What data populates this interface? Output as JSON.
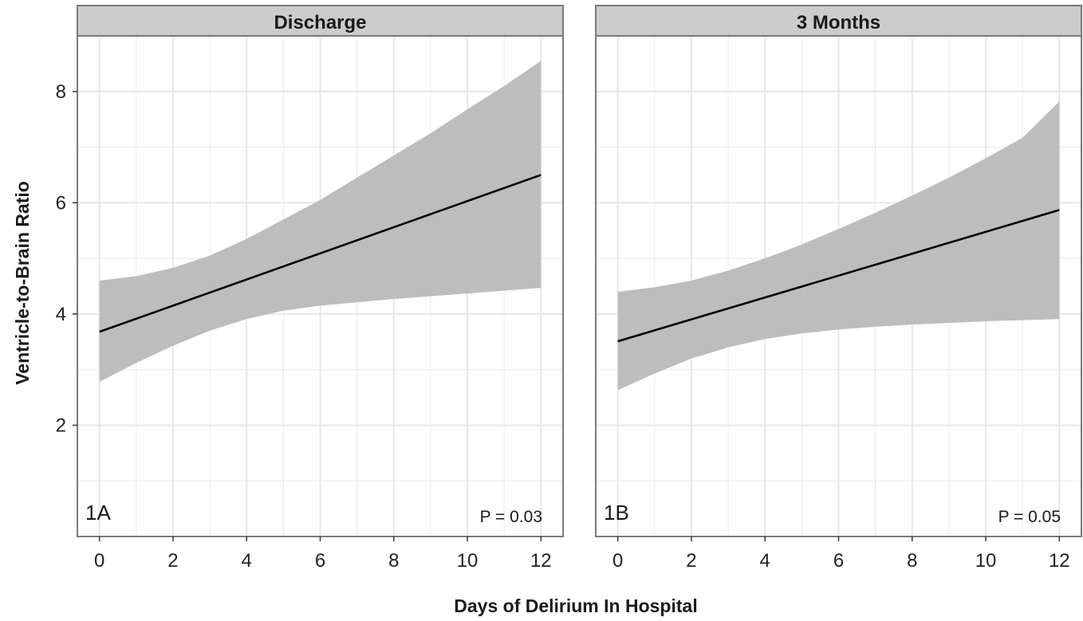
{
  "chart_data": {
    "type": "line",
    "xlabel": "Days of Delirium In Hospital",
    "ylabel": "Ventricle-to-Brain Ratio",
    "xlim": [
      -0.6,
      12.6
    ],
    "ylim": [
      0,
      9
    ],
    "x_ticks": [
      0,
      2,
      4,
      6,
      8,
      10,
      12
    ],
    "y_ticks": [
      2,
      4,
      6,
      8
    ],
    "grid": true,
    "panels": [
      {
        "title": "Discharge",
        "tag": "1A",
        "p_value": "P = 0.03",
        "fit": {
          "x": [
            0,
            12
          ],
          "y": [
            3.68,
            6.5
          ]
        },
        "band": {
          "x": [
            0,
            1,
            2,
            3,
            4,
            5,
            6,
            7,
            8,
            9,
            10,
            11,
            12
          ],
          "upper": [
            4.6,
            4.68,
            4.83,
            5.05,
            5.35,
            5.7,
            6.05,
            6.45,
            6.85,
            7.25,
            7.68,
            8.1,
            8.55
          ],
          "lower": [
            2.78,
            3.12,
            3.43,
            3.7,
            3.91,
            4.06,
            4.15,
            4.21,
            4.27,
            4.32,
            4.37,
            4.42,
            4.47
          ]
        }
      },
      {
        "title": "3 Months",
        "tag": "1B",
        "p_value": "P = 0.05",
        "fit": {
          "x": [
            0,
            12
          ],
          "y": [
            3.51,
            5.87
          ]
        },
        "band": {
          "x": [
            0,
            1,
            2,
            3,
            4,
            5,
            6,
            7,
            8,
            9,
            10,
            11,
            12
          ],
          "upper": [
            4.4,
            4.48,
            4.6,
            4.78,
            5.0,
            5.25,
            5.53,
            5.82,
            6.13,
            6.45,
            6.8,
            7.17,
            7.82
          ],
          "lower": [
            2.63,
            2.93,
            3.2,
            3.4,
            3.55,
            3.65,
            3.72,
            3.77,
            3.81,
            3.84,
            3.87,
            3.89,
            3.91
          ]
        }
      }
    ]
  },
  "colors": {
    "strip_fill": "#cccccc",
    "panel_border": "#7a7a7a",
    "grid": "#e8e8e8",
    "band": "#bdbdbd",
    "line": "#000000"
  }
}
